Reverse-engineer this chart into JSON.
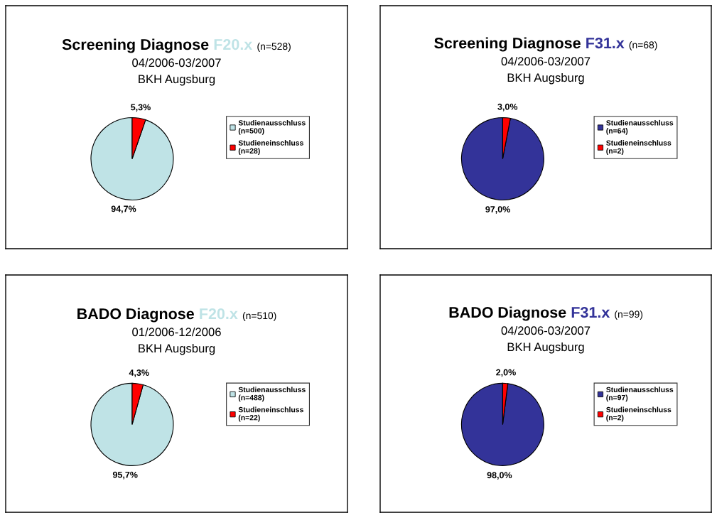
{
  "chart_data": [
    {
      "type": "pie",
      "title": "Screening Diagnose F20.x (n=528)",
      "subtitle": "04/2006-03/2007",
      "annotations": [
        "BKH Augsburg"
      ],
      "categories": [
        "Studienausschluss\n(n=500)",
        "Studieneinschluss\n(n=28)"
      ],
      "values": [
        94.7,
        5.3
      ],
      "value_labels": [
        "94,7%",
        "5,3%"
      ],
      "colors": [
        "#bfe3e6",
        "#ff0000"
      ],
      "legend": "right"
    },
    {
      "type": "pie",
      "title": "Screening Diagnose F31.x (n=68)",
      "subtitle": "04/2006-03/2007",
      "annotations": [
        "BKH Augsburg"
      ],
      "categories": [
        "Studienausschluss\n(n=64)",
        "Studieneinschluss\n(n=2)"
      ],
      "values": [
        97.0,
        3.0
      ],
      "value_labels": [
        "97,0%",
        "3,0%"
      ],
      "colors": [
        "#333399",
        "#ff0000"
      ],
      "legend": "right"
    },
    {
      "type": "pie",
      "title": "BADO Diagnose F20.x (n=510)",
      "subtitle": "01/2006-12/2006",
      "annotations": [
        "BKH Augsburg"
      ],
      "categories": [
        "Studienausschluss\n(n=488)",
        "Studieneinschluss\n(n=22)"
      ],
      "values": [
        95.7,
        4.3
      ],
      "value_labels": [
        "95,7%",
        "4,3%"
      ],
      "colors": [
        "#bfe3e6",
        "#ff0000"
      ],
      "legend": "right"
    },
    {
      "type": "pie",
      "title": "BADO Diagnose F31.x (n=99)",
      "subtitle": "04/2006-03/2007",
      "annotations": [
        "BKH Augsburg"
      ],
      "categories": [
        "Studienausschluss\n(n=97)",
        "Studieneinschluss\n(n=2)"
      ],
      "values": [
        98.0,
        2.0
      ],
      "value_labels": [
        "98,0%",
        "2,0%"
      ],
      "colors": [
        "#333399",
        "#ff0000"
      ],
      "legend": "right"
    }
  ]
}
